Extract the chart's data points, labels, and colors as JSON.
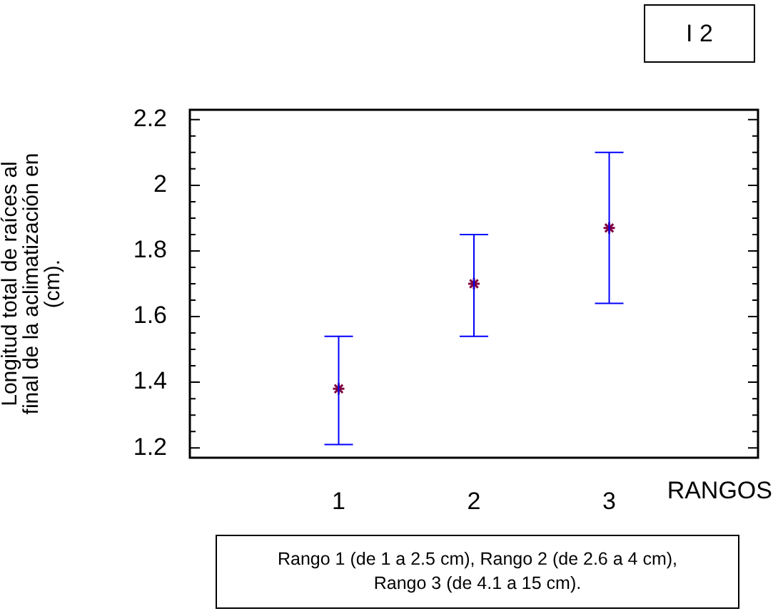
{
  "chart_data": {
    "type": "scatter",
    "ylabel": "Longitud total de raíces al final de la aclimatización en (cm).",
    "xlabel": "RANGOS",
    "annotations": [
      "I 2",
      "Rango 1 (de 1 a 2.5 cm), Rango 2 (de 2.6 a 4 cm), Rango 3 (de 4.1 a 15 cm)."
    ],
    "x": [
      1,
      2,
      3
    ],
    "values": [
      1.38,
      1.7,
      1.87
    ],
    "errors": [
      [
        1.21,
        1.54
      ],
      [
        1.54,
        1.85
      ],
      [
        1.64,
        2.1
      ]
    ],
    "color": "#800040",
    "marker": "cross",
    "xlim": [
      -0.1,
      4.1
    ],
    "xticks": [
      1,
      2,
      3
    ],
    "ylim": [
      1.17,
      2.23
    ],
    "yticks": [
      1.2,
      {
        "value": 1.25,
        "label": null
      },
      {
        "value": 1.3,
        "label": null
      },
      {
        "value": 1.35,
        "label": null
      },
      1.4,
      {
        "value": 1.45,
        "label": null
      },
      {
        "value": 1.5,
        "label": null
      },
      {
        "value": 1.55,
        "label": null
      },
      1.6,
      {
        "value": 1.65,
        "label": null
      },
      {
        "value": 1.7,
        "label": null
      },
      {
        "value": 1.75,
        "label": null
      },
      1.8,
      {
        "value": 1.85,
        "label": null
      },
      {
        "value": 1.9,
        "label": null
      },
      {
        "value": 1.95,
        "label": null
      },
      2,
      {
        "value": 2.05,
        "label": null
      },
      {
        "value": 2.1,
        "label": null
      },
      {
        "value": 2.15,
        "label": null
      },
      2.2
    ]
  }
}
